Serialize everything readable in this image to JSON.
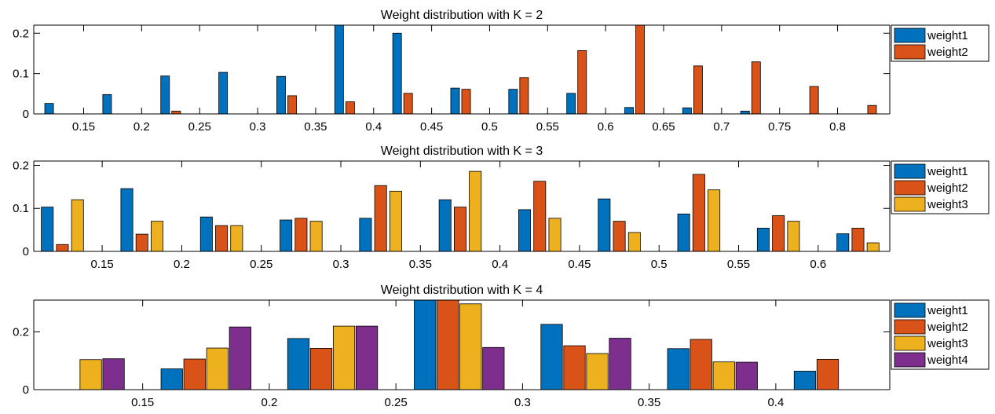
{
  "colors": {
    "weight1": "#0072BD",
    "weight2": "#D95319",
    "weight3": "#EDB120",
    "weight4": "#7E2F8E"
  },
  "chart_data": [
    {
      "type": "bar",
      "title": "Weight distribution with K = 2",
      "x": [
        0.125,
        0.175,
        0.225,
        0.275,
        0.325,
        0.375,
        0.425,
        0.475,
        0.525,
        0.575,
        0.625,
        0.675,
        0.725,
        0.775,
        0.825
      ],
      "xlim": [
        0.107,
        0.845
      ],
      "ylim": [
        0,
        0.22
      ],
      "xticks": [
        0.15,
        0.2,
        0.25,
        0.3,
        0.35,
        0.4,
        0.45,
        0.5,
        0.55,
        0.6,
        0.65,
        0.7,
        0.75,
        0.8
      ],
      "xtick_labels": [
        "0.15",
        "0.2",
        "0.25",
        "0.3",
        "0.35",
        "0.4",
        "0.45",
        "0.5",
        "0.55",
        "0.6",
        "0.65",
        "0.7",
        "0.75",
        "0.8"
      ],
      "yticks": [
        0,
        0.1,
        0.2
      ],
      "ytick_labels": [
        "0",
        "0.1",
        "0.2"
      ],
      "legend_position": "outside-top-right",
      "series": [
        {
          "name": "weight1",
          "values": [
            0.026,
            0.048,
            0.094,
            0.103,
            0.093,
            0.22,
            0.2,
            0.064,
            0.061,
            0.051,
            0.016,
            0.015,
            0.007,
            0.0,
            0.0
          ]
        },
        {
          "name": "weight2",
          "values": [
            0.0,
            0.0,
            0.007,
            0.0,
            0.045,
            0.03,
            0.051,
            0.061,
            0.09,
            0.157,
            0.22,
            0.119,
            0.129,
            0.068,
            0.021
          ]
        }
      ]
    },
    {
      "type": "bar",
      "title": "Weight distribution with K = 3",
      "x": [
        0.125,
        0.175,
        0.225,
        0.275,
        0.325,
        0.375,
        0.425,
        0.475,
        0.525,
        0.575,
        0.625
      ],
      "xlim": [
        0.107,
        0.645
      ],
      "ylim": [
        0,
        0.21
      ],
      "xticks": [
        0.15,
        0.2,
        0.25,
        0.3,
        0.35,
        0.4,
        0.45,
        0.5,
        0.55,
        0.6
      ],
      "xtick_labels": [
        "0.15",
        "0.2",
        "0.25",
        "0.3",
        "0.35",
        "0.4",
        "0.45",
        "0.5",
        "0.55",
        "0.6"
      ],
      "yticks": [
        0,
        0.1,
        0.2
      ],
      "ytick_labels": [
        "0",
        "0.1",
        "0.2"
      ],
      "legend_position": "outside-top-right",
      "series": [
        {
          "name": "weight1",
          "values": [
            0.103,
            0.146,
            0.08,
            0.073,
            0.077,
            0.12,
            0.097,
            0.122,
            0.087,
            0.054,
            0.041
          ]
        },
        {
          "name": "weight2",
          "values": [
            0.016,
            0.04,
            0.06,
            0.077,
            0.153,
            0.103,
            0.163,
            0.07,
            0.179,
            0.083,
            0.054
          ]
        },
        {
          "name": "weight3",
          "values": [
            0.12,
            0.07,
            0.06,
            0.07,
            0.14,
            0.186,
            0.077,
            0.044,
            0.143,
            0.07,
            0.02
          ]
        }
      ]
    },
    {
      "type": "bar",
      "title": "Weight distribution with K = 4",
      "x": [
        0.125,
        0.175,
        0.225,
        0.275,
        0.325,
        0.375,
        0.425
      ],
      "xlim": [
        0.107,
        0.445
      ],
      "ylim": [
        0,
        0.31
      ],
      "xticks": [
        0.15,
        0.2,
        0.25,
        0.3,
        0.35,
        0.4
      ],
      "xtick_labels": [
        "0.15",
        "0.2",
        "0.25",
        "0.3",
        "0.35",
        "0.4"
      ],
      "yticks": [
        0,
        0.2
      ],
      "ytick_labels": [
        "0",
        "0.2"
      ],
      "legend_position": "outside-top-right",
      "series": [
        {
          "name": "weight1",
          "values": [
            0.0,
            0.072,
            0.177,
            0.31,
            0.226,
            0.142,
            0.064
          ]
        },
        {
          "name": "weight2",
          "values": [
            0.0,
            0.106,
            0.143,
            0.31,
            0.152,
            0.174,
            0.105
          ]
        },
        {
          "name": "weight3",
          "values": [
            0.104,
            0.144,
            0.22,
            0.297,
            0.125,
            0.096,
            0.0
          ]
        },
        {
          "name": "weight4",
          "values": [
            0.107,
            0.217,
            0.22,
            0.146,
            0.178,
            0.095,
            0.0
          ]
        }
      ]
    }
  ]
}
